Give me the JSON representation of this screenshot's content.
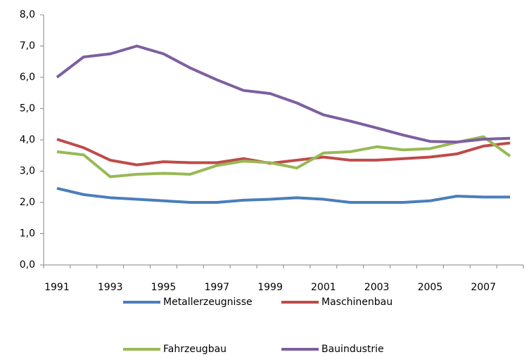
{
  "chart_data": {
    "type": "line",
    "categories": [
      "1991",
      null,
      "1993",
      null,
      "1995",
      null,
      "1997",
      null,
      "1999",
      null,
      "2001",
      null,
      "2003",
      null,
      "2005",
      null,
      "2007",
      null
    ],
    "series": [
      {
        "name": "Metallerzeugnisse",
        "color": "#4a7ebb",
        "values": [
          2.45,
          2.25,
          2.15,
          2.1,
          2.05,
          2.0,
          2.0,
          2.07,
          2.1,
          2.15,
          2.1,
          2.0,
          2.0,
          2.0,
          2.05,
          2.2,
          2.17,
          2.17
        ]
      },
      {
        "name": "Maschinenbau",
        "color": "#be4b48",
        "values": [
          4.02,
          3.75,
          3.35,
          3.2,
          3.3,
          3.27,
          3.27,
          3.4,
          3.25,
          3.35,
          3.45,
          3.35,
          3.35,
          3.4,
          3.45,
          3.55,
          3.8,
          3.9
        ]
      },
      {
        "name": "Fahrzeugbau",
        "color": "#98b954",
        "values": [
          3.62,
          3.52,
          2.82,
          2.9,
          2.93,
          2.9,
          3.18,
          3.32,
          3.27,
          3.1,
          3.58,
          3.62,
          3.78,
          3.68,
          3.72,
          3.92,
          4.1,
          3.48
        ]
      },
      {
        "name": "Bauindustrie",
        "color": "#7d5fa0",
        "values": [
          6.0,
          6.65,
          6.75,
          7.0,
          6.75,
          6.3,
          5.92,
          5.58,
          5.48,
          5.18,
          4.8,
          4.6,
          4.38,
          4.15,
          3.95,
          3.93,
          4.02,
          4.05
        ]
      }
    ],
    "ylim": [
      0,
      8
    ],
    "yticks": [
      {
        "value": 0,
        "label": "0,0"
      },
      {
        "value": 1,
        "label": "1,0"
      },
      {
        "value": 2,
        "label": "2,0"
      },
      {
        "value": 3,
        "label": "3,0"
      },
      {
        "value": 4,
        "label": "4,0"
      },
      {
        "value": 5,
        "label": "5,0"
      },
      {
        "value": 6,
        "label": "6,0"
      },
      {
        "value": 7,
        "label": "7,0"
      },
      {
        "value": 8,
        "label": "8,0"
      }
    ],
    "grid": false,
    "legend": "bottom"
  }
}
